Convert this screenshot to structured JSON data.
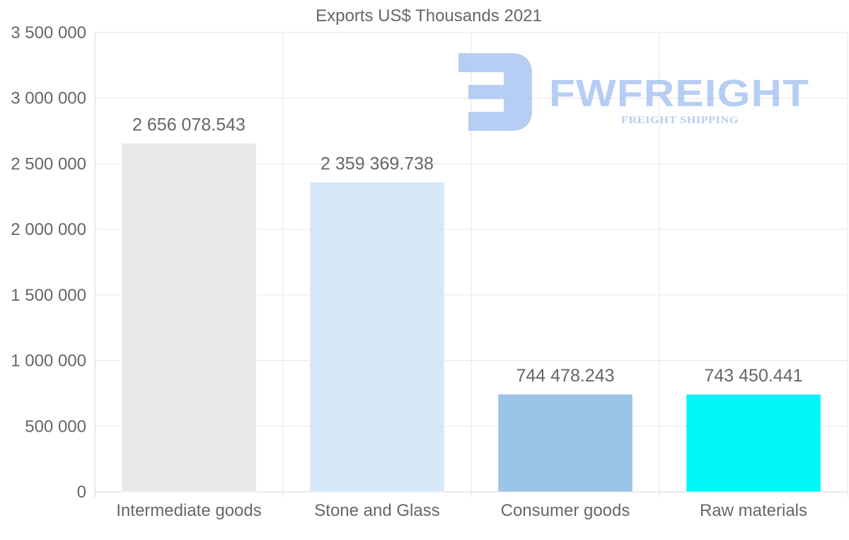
{
  "chart_data": {
    "type": "bar",
    "title": "Exports US$ Thousands 2021",
    "categories": [
      "Intermediate goods",
      "Stone and Glass",
      "Consumer goods",
      "Raw materials"
    ],
    "values": [
      2656078.543,
      2359369.738,
      744478.243,
      743450.441
    ],
    "value_labels": [
      "2 656 078.543",
      "2 359 369.738",
      "744 478.243",
      "743 450.441"
    ],
    "colors": [
      "#e8e8e8",
      "#d6e7f8",
      "#9cc4e6",
      "#00f7f7"
    ],
    "ylim": [
      0,
      3500000
    ],
    "yticks": [
      0,
      500000,
      1000000,
      1500000,
      2000000,
      2500000,
      3000000,
      3500000
    ],
    "ytick_labels": [
      "0",
      "500 000",
      "1 000 000",
      "1 500 000",
      "2 000 000",
      "2 500 000",
      "3 000 000",
      "3 500 000"
    ],
    "xlabel": "",
    "ylabel": "",
    "grid": true,
    "legend": "none"
  },
  "watermark": {
    "brand": "FWFREIGHT",
    "tagline": "FREIGHT SHIPPING",
    "color": "#aac6f2"
  }
}
